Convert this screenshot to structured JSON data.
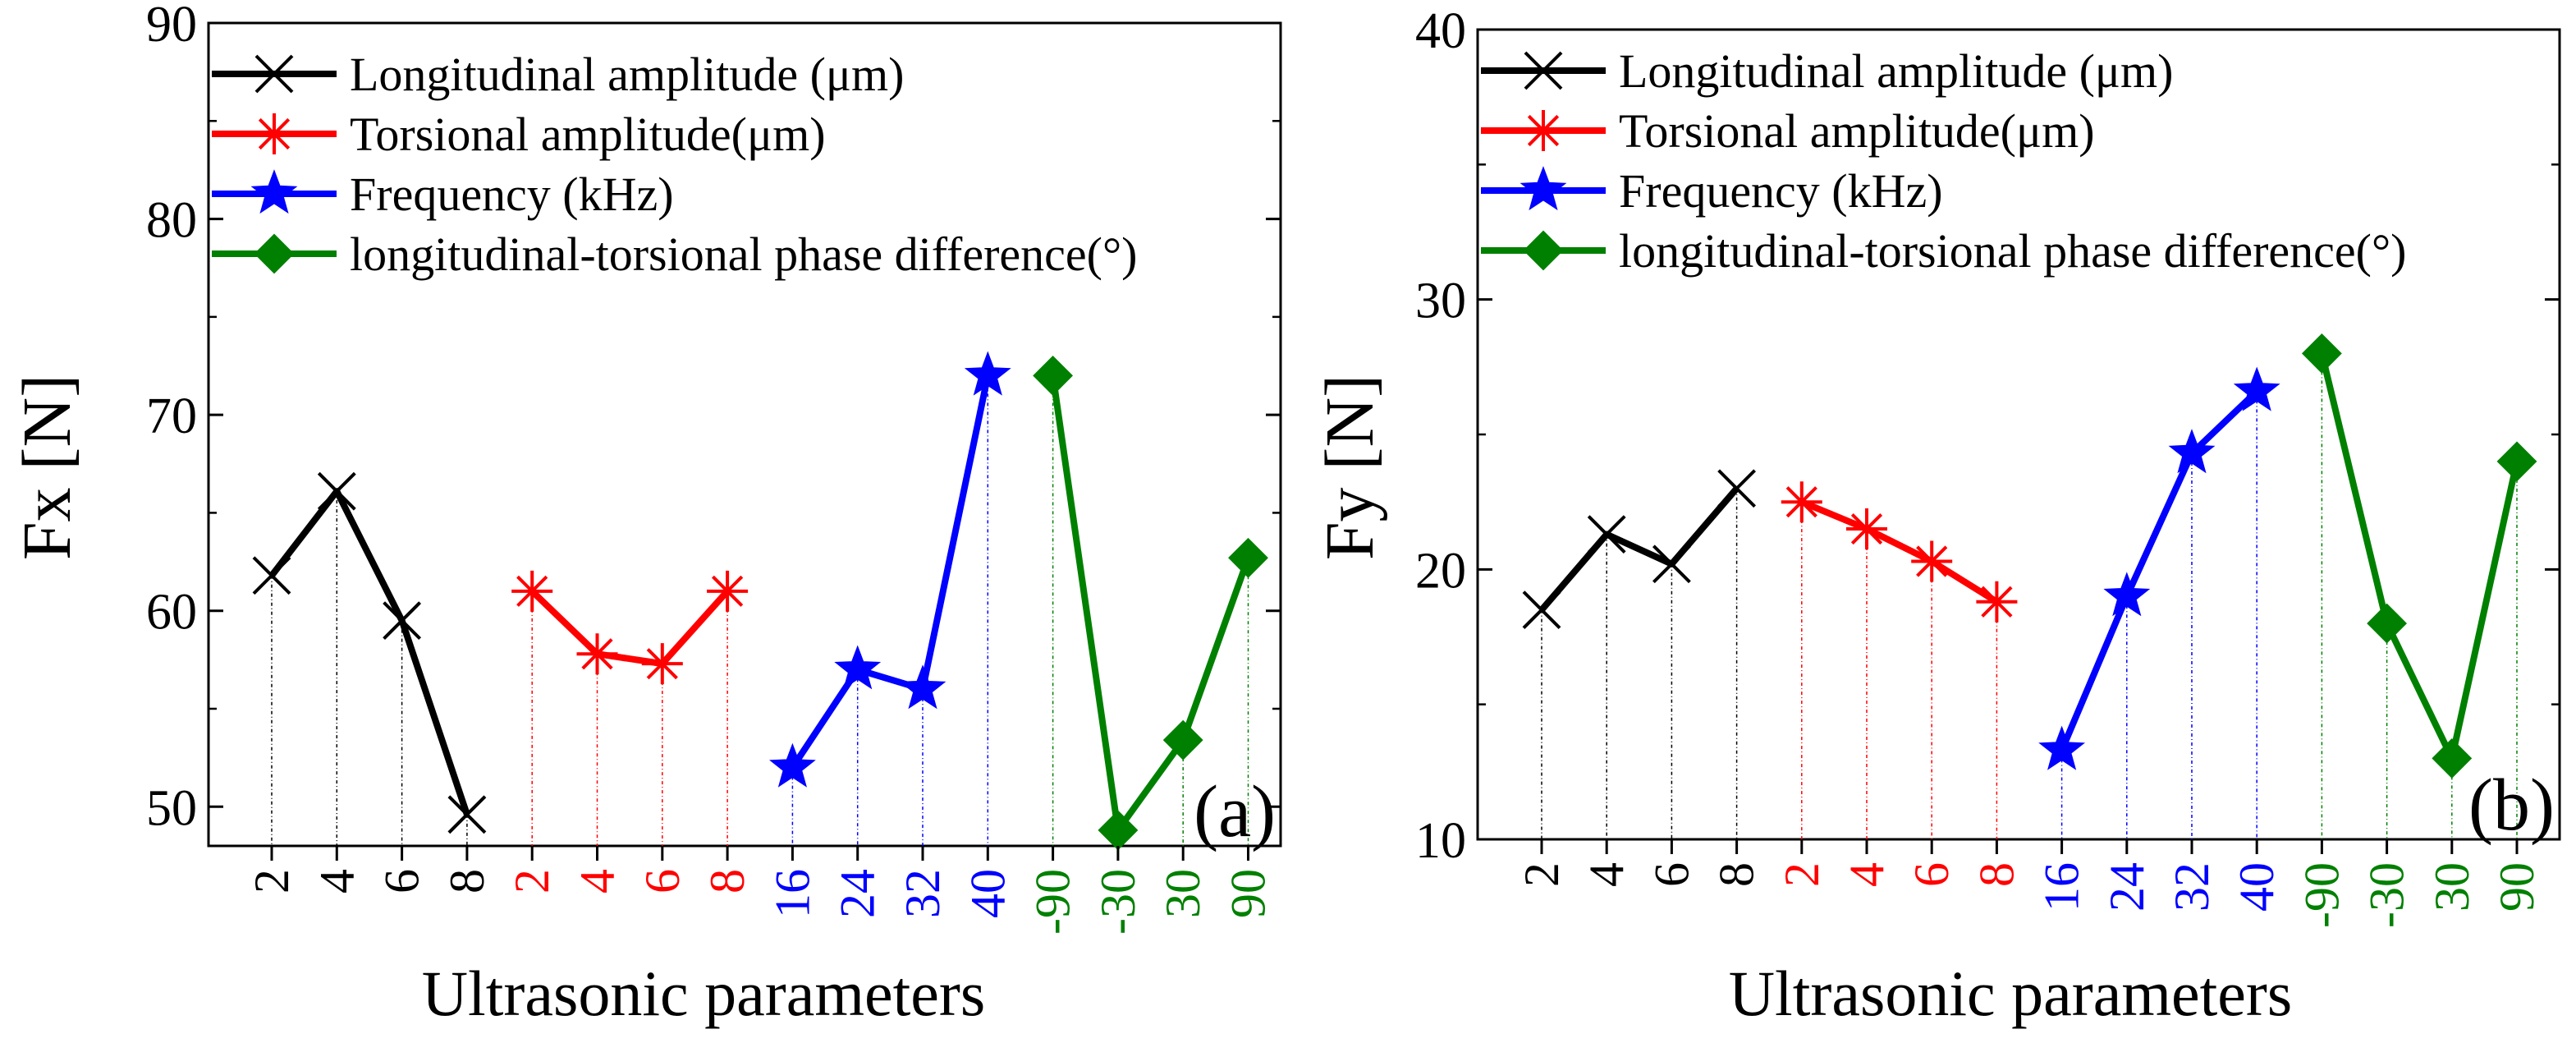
{
  "colors": {
    "longitudinal": "#000000",
    "torsional": "#ff0000",
    "frequency": "#0000ff",
    "phase": "#008000"
  },
  "chart_data": [
    {
      "type": "line",
      "panel_label": "(a)",
      "ylabel": "Fx  [N]",
      "xlabel": "Ultrasonic parameters",
      "ylim": [
        48,
        90
      ],
      "yticks": [
        50,
        60,
        70,
        80,
        90
      ],
      "grid": false,
      "legend_placement": "top-left",
      "series": [
        {
          "name": "Longitudinal  amplitude (μm)",
          "marker": "x",
          "color": "#000000",
          "categories": [
            "2",
            "4",
            "6",
            "8"
          ],
          "values": [
            61.8,
            66.1,
            59.5,
            49.6
          ]
        },
        {
          "name": "Torsional amplitude(μm)",
          "marker": "asterisk",
          "color": "#ff0000",
          "categories": [
            "2",
            "4",
            "6",
            "8"
          ],
          "values": [
            61.0,
            57.8,
            57.3,
            61.0
          ]
        },
        {
          "name": "Frequency (kHz)",
          "marker": "star",
          "color": "#0000ff",
          "categories": [
            "16",
            "24",
            "32",
            "40"
          ],
          "values": [
            52.0,
            57.0,
            56.0,
            72.0
          ]
        },
        {
          "name": "longitudinal-torsional phase difference(°)",
          "marker": "diamond",
          "color": "#008000",
          "categories": [
            "-90",
            "-30",
            "30",
            "90"
          ],
          "values": [
            72.0,
            48.8,
            53.4,
            62.7
          ]
        }
      ]
    },
    {
      "type": "line",
      "panel_label": "(b)",
      "ylabel": "Fy  [N]",
      "xlabel": "Ultrasonic parameters",
      "ylim": [
        10,
        40
      ],
      "yticks": [
        10,
        20,
        30,
        40
      ],
      "grid": false,
      "legend_placement": "top-left",
      "series": [
        {
          "name": "Longitudinal  amplitude (μm)",
          "marker": "x",
          "color": "#000000",
          "categories": [
            "2",
            "4",
            "6",
            "8"
          ],
          "values": [
            18.5,
            21.3,
            20.2,
            23.0
          ]
        },
        {
          "name": "Torsional amplitude(μm)",
          "marker": "asterisk",
          "color": "#ff0000",
          "categories": [
            "2",
            "4",
            "6",
            "8"
          ],
          "values": [
            22.5,
            21.5,
            20.3,
            18.8
          ]
        },
        {
          "name": "Frequency (kHz)",
          "marker": "star",
          "color": "#0000ff",
          "categories": [
            "16",
            "24",
            "32",
            "40"
          ],
          "values": [
            13.3,
            19.0,
            24.3,
            26.6
          ]
        },
        {
          "name": "longitudinal-torsional phase difference(°)",
          "marker": "diamond",
          "color": "#008000",
          "categories": [
            "-90",
            "-30",
            "30",
            "90"
          ],
          "values": [
            28.0,
            18.0,
            13.0,
            24.0
          ]
        }
      ]
    }
  ]
}
